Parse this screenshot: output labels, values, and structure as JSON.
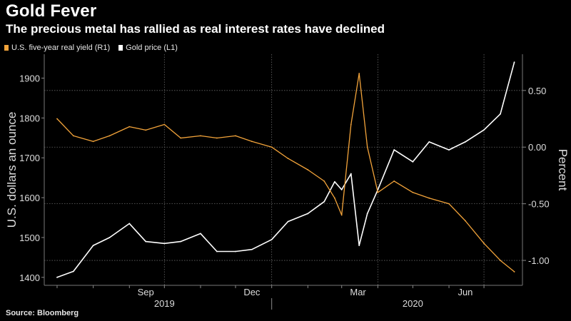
{
  "header": {
    "title": "Gold Fever",
    "subtitle": "The precious metal has rallied as real interest rates have declined"
  },
  "legend": [
    {
      "label": "U.S. five-year real yield (R1)",
      "color": "#f2a33a"
    },
    {
      "label": "Gold price (L1)",
      "color": "#ffffff"
    }
  ],
  "footer": {
    "source": "Source: Bloomberg"
  },
  "chart_data": {
    "type": "line",
    "left_axis": {
      "label": "U.S. dollars an ounce",
      "range": [
        1380,
        1960
      ],
      "ticks": [
        "1400",
        "1500",
        "1600",
        "1700",
        "1800",
        "1900"
      ]
    },
    "right_axis": {
      "label": "Percent",
      "range": [
        -1.22,
        0.82
      ],
      "ticks": [
        "-1.00",
        "-0.50",
        "0.00",
        "0.50"
      ]
    },
    "x_tick_labels": [
      "Sep",
      "Dec",
      "Mar",
      "Jun"
    ],
    "year_labels": [
      "2019",
      "2020"
    ],
    "grid": true,
    "legend_position": "top-left",
    "x": [
      "2019-07-01",
      "2019-07-15",
      "2019-08-01",
      "2019-08-15",
      "2019-09-01",
      "2019-09-15",
      "2019-10-01",
      "2019-10-15",
      "2019-11-01",
      "2019-11-15",
      "2019-12-01",
      "2019-12-15",
      "2020-01-01",
      "2020-01-15",
      "2020-02-01",
      "2020-02-15",
      "2020-02-24",
      "2020-03-01",
      "2020-03-09",
      "2020-03-16",
      "2020-03-23",
      "2020-04-01",
      "2020-04-15",
      "2020-05-01",
      "2020-05-15",
      "2020-06-01",
      "2020-06-15",
      "2020-07-01",
      "2020-07-15",
      "2020-07-27"
    ],
    "series": [
      {
        "name": "Gold price (L1)",
        "axis": "left",
        "color": "#ffffff",
        "values": [
          1400,
          1415,
          1480,
          1500,
          1535,
          1490,
          1485,
          1490,
          1510,
          1465,
          1465,
          1470,
          1495,
          1540,
          1560,
          1590,
          1640,
          1620,
          1660,
          1480,
          1560,
          1620,
          1720,
          1690,
          1740,
          1720,
          1740,
          1770,
          1810,
          1940
        ]
      },
      {
        "name": "U.S. five-year real yield (R1)",
        "axis": "right",
        "color": "#f2a33a",
        "values": [
          0.25,
          0.1,
          0.05,
          0.1,
          0.18,
          0.15,
          0.2,
          0.08,
          0.1,
          0.08,
          0.1,
          0.05,
          0.0,
          -0.1,
          -0.2,
          -0.3,
          -0.45,
          -0.6,
          0.2,
          0.65,
          0.0,
          -0.4,
          -0.3,
          -0.4,
          -0.45,
          -0.5,
          -0.65,
          -0.85,
          -1.0,
          -1.1
        ]
      }
    ]
  }
}
